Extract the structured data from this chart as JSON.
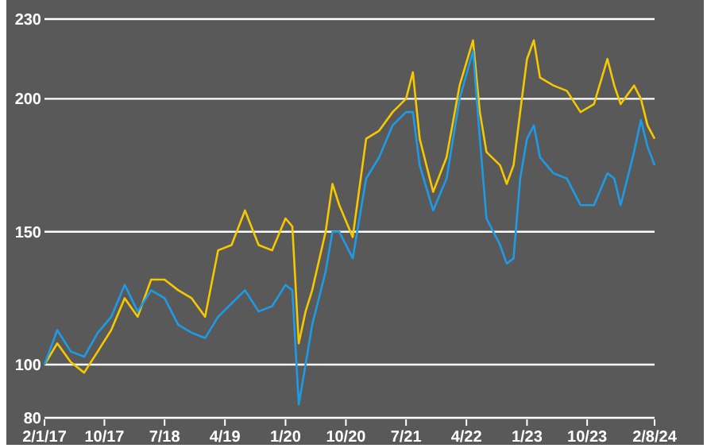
{
  "chart_data": {
    "type": "line",
    "x": [
      "2017-01-02",
      "2017-03",
      "2017-05",
      "2017-07",
      "2017-09",
      "2017-11",
      "2018-01",
      "2018-03",
      "2018-05",
      "2018-07",
      "2018-09",
      "2018-11",
      "2019-01",
      "2019-03",
      "2019-05",
      "2019-07",
      "2019-09",
      "2019-11",
      "2020-01",
      "2020-02",
      "2020-03",
      "2020-04",
      "2020-05",
      "2020-07",
      "2020-08",
      "2020-09",
      "2020-11",
      "2021-01",
      "2021-03",
      "2021-05",
      "2021-07",
      "2021-08",
      "2021-09",
      "2021-11",
      "2022-01",
      "2022-03",
      "2022-05",
      "2022-06",
      "2022-07",
      "2022-09",
      "2022-10",
      "2022-11",
      "2022-12",
      "2023-01",
      "2023-02",
      "2023-03",
      "2023-05",
      "2023-07",
      "2023-09",
      "2023-11",
      "2024-01",
      "2024-02",
      "2024-03",
      "2024-05",
      "2024-06",
      "2024-07",
      "2024-08-02"
    ],
    "series": [
      {
        "color": "#f5c800",
        "values": [
          100,
          108,
          101,
          97,
          105,
          113,
          125,
          118,
          132,
          132,
          128,
          125,
          118,
          143,
          145,
          158,
          145,
          143,
          155,
          152,
          108,
          120,
          128,
          150,
          168,
          160,
          148,
          185,
          188,
          195,
          200,
          210,
          185,
          165,
          178,
          205,
          222,
          195,
          180,
          175,
          168,
          175,
          195,
          215,
          222,
          208,
          205,
          203,
          195,
          198,
          215,
          205,
          198,
          205,
          200,
          190,
          185
        ]
      },
      {
        "color": "#1e9be6",
        "values": [
          100,
          113,
          105,
          103,
          112,
          118,
          130,
          120,
          128,
          125,
          115,
          112,
          110,
          118,
          123,
          128,
          120,
          122,
          130,
          128,
          85,
          100,
          115,
          135,
          150,
          150,
          140,
          170,
          178,
          190,
          195,
          195,
          175,
          158,
          170,
          200,
          218,
          185,
          155,
          145,
          138,
          140,
          170,
          185,
          190,
          178,
          172,
          170,
          160,
          160,
          172,
          170,
          160,
          180,
          192,
          182,
          175
        ]
      }
    ],
    "xlim": [
      "2017-01-02",
      "2024-08-02"
    ],
    "xticks": [
      {
        "value": "2017-01-02",
        "label": "2/1/17"
      },
      {
        "value": "2017-10-01",
        "label": "10/17"
      },
      {
        "value": "2018-07-01",
        "label": "7/18"
      },
      {
        "value": "2019-04-01",
        "label": "4/19"
      },
      {
        "value": "2020-01-01",
        "label": "1/20"
      },
      {
        "value": "2020-10-01",
        "label": "10/20"
      },
      {
        "value": "2021-07-01",
        "label": "7/21"
      },
      {
        "value": "2022-04-01",
        "label": "4/22"
      },
      {
        "value": "2023-01-01",
        "label": "1/23"
      },
      {
        "value": "2023-10-01",
        "label": "10/23"
      },
      {
        "value": "2024-08-02",
        "label": "2/8/24"
      }
    ],
    "ylim": [
      80,
      230
    ],
    "yticks": [
      80,
      100,
      150,
      200,
      230
    ],
    "grid": "y",
    "line_style": "solid",
    "marker": "none"
  }
}
